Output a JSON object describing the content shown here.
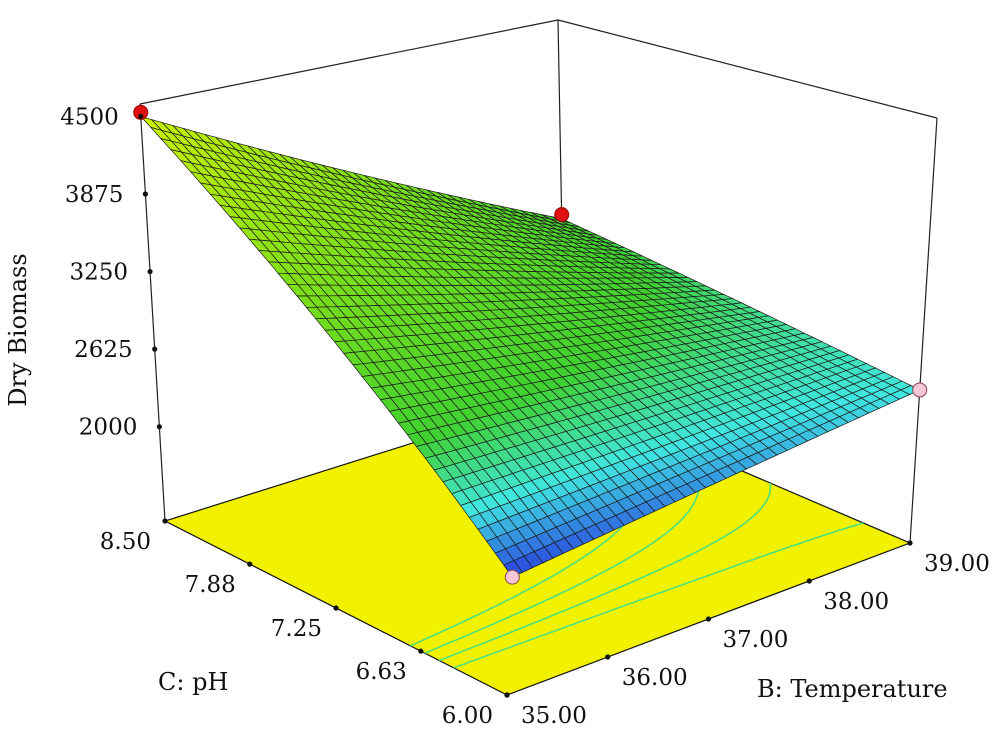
{
  "chart_data": {
    "type": "surface3d",
    "title": "",
    "zlabel": "Dry Biomass",
    "xlabel": "B: Temperature",
    "ylabel": "C: pH",
    "zlim": [
      1240,
      4600
    ],
    "z_ticks": [
      "2000",
      "2625",
      "3250",
      "3875",
      "4500"
    ],
    "z_tick_values": [
      2000,
      2625,
      3250,
      3875,
      4500
    ],
    "ph_ticks": [
      "6.00",
      "6.63",
      "7.25",
      "7.88",
      "8.50"
    ],
    "ph_tick_values": [
      6.0,
      6.63,
      7.25,
      7.88,
      8.5
    ],
    "temp_ticks": [
      "35.00",
      "36.00",
      "37.00",
      "38.00",
      "39.00"
    ],
    "temp_tick_values": [
      35,
      36,
      37,
      38,
      39
    ],
    "ph_range": [
      6.0,
      8.5
    ],
    "temp_range": [
      35,
      39
    ],
    "surface_corners": {
      "ph6_t35": 2130,
      "ph8_5_t35": 4500,
      "ph6_t39": 2450,
      "ph8_5_t39": 2820
    },
    "design_points": [
      {
        "ph": 8.5,
        "temp": 35,
        "value": 4500,
        "above_surface": true
      },
      {
        "ph": 8.5,
        "temp": 39,
        "value": 2820,
        "above_surface": true
      },
      {
        "ph": 6.0,
        "temp": 35,
        "value": 2130,
        "above_surface": false
      },
      {
        "ph": 6.0,
        "temp": 39,
        "value": 2450,
        "above_surface": false
      }
    ],
    "contour_levels": [
      2500,
      2600,
      2700,
      2800
    ],
    "colors": {
      "floor": "#f2f200",
      "contour": "#4ee07a",
      "point_above": "#e01010",
      "point_below": "#f4c8d8",
      "low": "#2a40e0",
      "mid": "#40f0e0",
      "high_mid": "#40d030",
      "high": "#c8f000"
    }
  }
}
